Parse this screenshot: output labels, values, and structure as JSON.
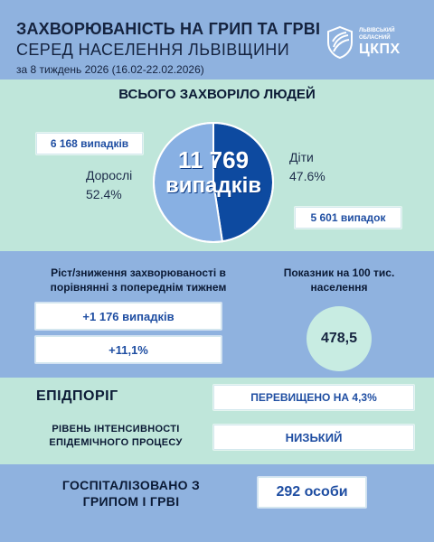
{
  "header": {
    "title_line1": "ЗАХВОРЮВАНІСТЬ НА ГРИП ТА ГРВІ",
    "title_line2": "СЕРЕД НАСЕЛЕННЯ ЛЬВІВЩИНИ",
    "subtitle": "за 8 тиждень 2026 (16.02-22.02.2026)",
    "logo_small_line1": "ЛЬВІВСЬКИЙ",
    "logo_small_line2": "ОБЛАСНИЙ",
    "logo_big": "ЦКПХ",
    "logo_icon": "shield-logo-icon"
  },
  "total": {
    "title": "ВСЬОГО ЗАХВОРІЛО ЛЮДЕЙ",
    "number": "11 769",
    "word": "випадків",
    "adults_cases": "6 168 випадків",
    "adults_label": "Дорослі",
    "adults_pct": "52.4%",
    "kids_label": "Діти",
    "kids_pct": "47.6%",
    "kids_cases": "5 601 випадок"
  },
  "chart_data": {
    "type": "pie",
    "categories": [
      "Дорослі",
      "Діти"
    ],
    "values": [
      52.4,
      47.6
    ],
    "colors": [
      "#88b0e3",
      "#0d4aa0"
    ]
  },
  "growth": {
    "title": "Ріст/зниження захворюваності в порівнянні з попереднім тижнем",
    "cases": "+1 176 випадків",
    "percent": "+11,1%"
  },
  "per100k": {
    "title": "Показник на 100 тис. населення",
    "value": "478,5"
  },
  "epidemic": {
    "threshold_label": "ЕПІДПОРІГ",
    "threshold_value": "ПЕРЕВИЩЕНО НА 4,3%",
    "intensity_label": "РІВЕНЬ ІНТЕНСИВНОСТІ ЕПІДЕМІЧНОГО ПРОЦЕСУ",
    "intensity_value": "НИЗЬКИЙ"
  },
  "hospital": {
    "label": "ГОСПІТАЛІЗОВАНО З ГРИПОМ І ГРВІ",
    "value": "292 особи"
  },
  "colors": {
    "blue_bg": "#8fb2df",
    "mint_bg": "#bfe6da",
    "accent_blue": "#1f4ea2",
    "dark_blue": "#0d4aa0"
  }
}
